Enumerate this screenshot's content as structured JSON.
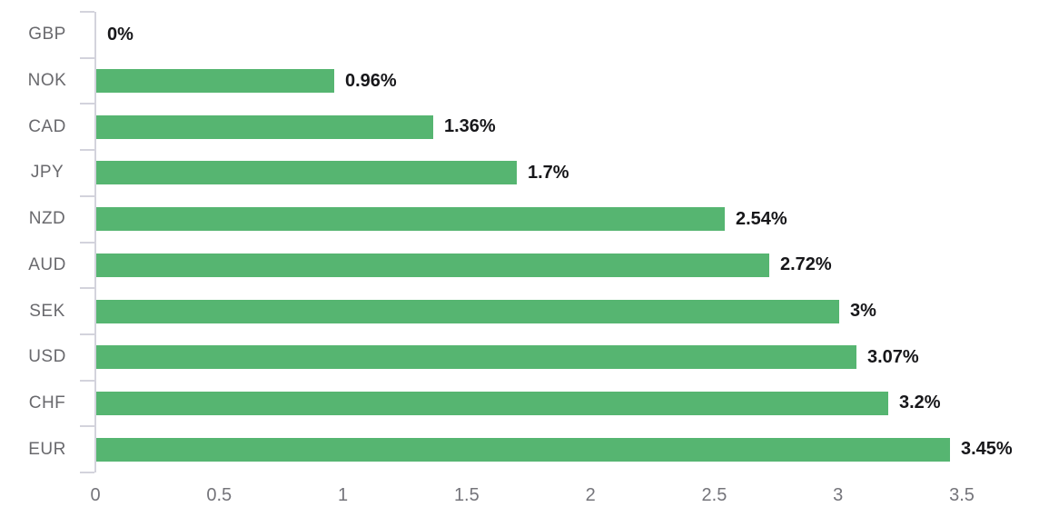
{
  "chart_data": {
    "type": "bar",
    "orientation": "horizontal",
    "title": "",
    "xlabel": "",
    "ylabel": "",
    "grid": false,
    "legend": false,
    "categories": [
      "GBP",
      "NOK",
      "CAD",
      "JPY",
      "NZD",
      "AUD",
      "SEK",
      "USD",
      "CHF",
      "EUR"
    ],
    "values": [
      0,
      0.96,
      1.36,
      1.7,
      2.54,
      2.72,
      3,
      3.07,
      3.2,
      3.45
    ],
    "value_labels": [
      "0%",
      "0.96%",
      "1.36%",
      "1.7%",
      "2.54%",
      "2.72%",
      "3%",
      "3.07%",
      "3.2%",
      "3.45%"
    ],
    "x_ticks": [
      "0",
      "0.5",
      "1",
      "1.5",
      "2",
      "2.5",
      "3",
      "3.5"
    ],
    "x_tick_values": [
      0,
      0.5,
      1,
      1.5,
      2,
      2.5,
      3,
      3.5
    ],
    "xlim": [
      0,
      3.5
    ],
    "colors": {
      "bar": "#56b571",
      "axis": "#d3d3dc",
      "category_label": "#69696d",
      "x_tick_label": "#74747a",
      "value_label": "#17171a",
      "background": "#ffffff"
    }
  }
}
